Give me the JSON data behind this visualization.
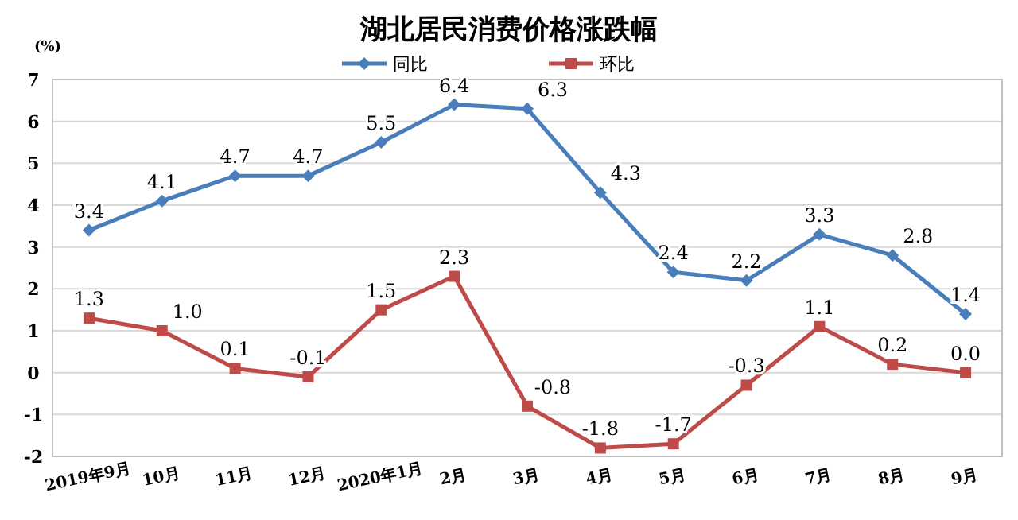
{
  "chart_data": {
    "type": "line",
    "title": "湖北居民消费价格涨跌幅",
    "ylabel": "(%)",
    "categories": [
      "2019年9月",
      "10月",
      "11月",
      "12月",
      "2020年1月",
      "2月",
      "3月",
      "4月",
      "5月",
      "6月",
      "7月",
      "8月",
      "9月"
    ],
    "series": [
      {
        "name": "同比",
        "color": "#4a7ebb",
        "marker": "diamond",
        "values": [
          3.4,
          4.1,
          4.7,
          4.7,
          5.5,
          6.4,
          6.3,
          4.3,
          2.4,
          2.2,
          3.3,
          2.8,
          1.4
        ],
        "value_labels": [
          "3.4",
          "4.1",
          "4.7",
          "4.7",
          "5.5",
          "6.4",
          "6.3",
          "4.3",
          "2.4",
          "2.2",
          "3.3",
          "2.8",
          "1.4"
        ]
      },
      {
        "name": "环比",
        "color": "#be4b48",
        "marker": "square",
        "values": [
          1.3,
          1.0,
          0.1,
          -0.1,
          1.5,
          2.3,
          -0.8,
          -1.8,
          -1.7,
          -0.3,
          1.1,
          0.2,
          0.0
        ],
        "value_labels": [
          "1.3",
          "1.0",
          "0.1",
          "-0.1",
          "1.5",
          "2.3",
          "-0.8",
          "-1.8",
          "-1.7",
          "-0.3",
          "1.1",
          "0.2",
          "0.0"
        ]
      }
    ],
    "ylim": [
      -2,
      7
    ],
    "yticks": [
      -2,
      -1,
      0,
      1,
      2,
      3,
      4,
      5,
      6,
      7
    ],
    "grid": "y",
    "legend": "top",
    "data_labels": true,
    "line_style": "solid"
  }
}
